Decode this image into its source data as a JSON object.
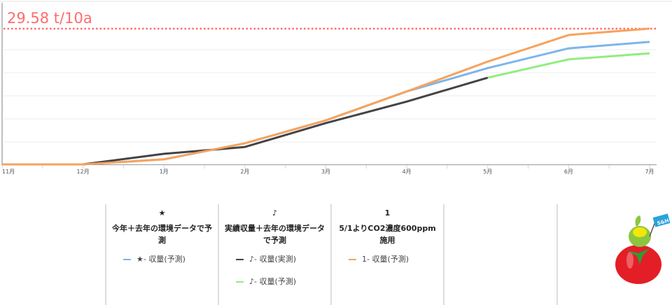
{
  "chart_data": {
    "type": "line",
    "categories": [
      "11月",
      "12月",
      "1月",
      "2月",
      "3月",
      "4月",
      "5月",
      "6月",
      "7月"
    ],
    "target_line": {
      "label": "29.58 t/10a",
      "value": 29.58,
      "color": "#ff6b6b"
    },
    "ylim": [
      0,
      31
    ],
    "grid": true,
    "series": [
      {
        "name": "★- 収量(予測)",
        "color": "#7cb5ec",
        "values": [
          0,
          0,
          1.1,
          4.6,
          9.6,
          15.9,
          21.0,
          25.3,
          26.7
        ]
      },
      {
        "name": "♪- 収量(実測)",
        "color": "#434348",
        "values": [
          null,
          0,
          2.3,
          3.8,
          9.0,
          13.7,
          18.9,
          null,
          null
        ]
      },
      {
        "name": "♪- 収量(予測)",
        "color": "#90ed7d",
        "values": [
          null,
          null,
          null,
          null,
          null,
          null,
          18.9,
          22.9,
          24.2
        ]
      },
      {
        "name": "1- 収量(予測)",
        "color": "#f7a35c",
        "values": [
          0,
          0,
          1.1,
          4.6,
          9.6,
          15.9,
          22.4,
          28.2,
          29.6
        ]
      }
    ]
  },
  "legend": {
    "groups": [
      {
        "symbol": "★",
        "title": "今年＋去年の環境データで予測",
        "items": [
          "★- 収量(予測)"
        ]
      },
      {
        "symbol": "♪",
        "title": "実績収量＋去年の環境データで予測",
        "items": [
          "♪- 収量(実測)",
          "♪- 収量(予測)"
        ]
      },
      {
        "symbol": "1",
        "title": "5/1よりCO2濃度600ppm施用",
        "items": [
          "1- 収量(予測)"
        ]
      }
    ]
  },
  "logo": {
    "flag_text": "S&H"
  }
}
